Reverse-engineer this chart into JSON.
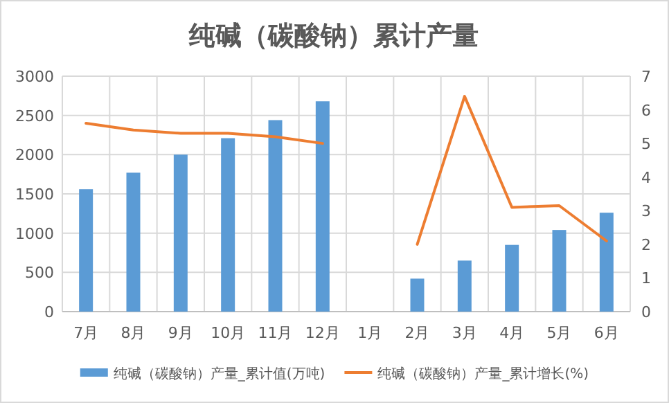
{
  "chart_data": {
    "type": "bar",
    "title": "纯碱（碳酸钠）累计产量",
    "categories": [
      "7月",
      "8月",
      "9月",
      "10月",
      "11月",
      "12月",
      "1月",
      "2月",
      "3月",
      "4月",
      "5月",
      "6月"
    ],
    "series": [
      {
        "name": "纯碱（碳酸钠）产量_累计值(万吨)",
        "color": "#5b9bd5",
        "values": [
          1560,
          1770,
          2000,
          2210,
          2440,
          2680,
          null,
          420,
          650,
          850,
          1040,
          1260
        ]
      },
      {
        "name": "纯碱（碳酸钠）产量_累计增长(%)",
        "type": "line",
        "axis": "y2",
        "color": "#ed7d31",
        "values": [
          5.6,
          5.4,
          5.3,
          5.3,
          5.2,
          5.0,
          null,
          2.0,
          6.4,
          3.1,
          3.15,
          2.1
        ]
      }
    ],
    "ylim": [
      0,
      3000
    ],
    "yticks": [
      0,
      500,
      1000,
      1500,
      2000,
      2500,
      3000
    ],
    "y2lim": [
      0,
      7
    ],
    "y2ticks": [
      0,
      1,
      2,
      3,
      4,
      5,
      6,
      7
    ],
    "grid": true,
    "legend": "bottom"
  }
}
